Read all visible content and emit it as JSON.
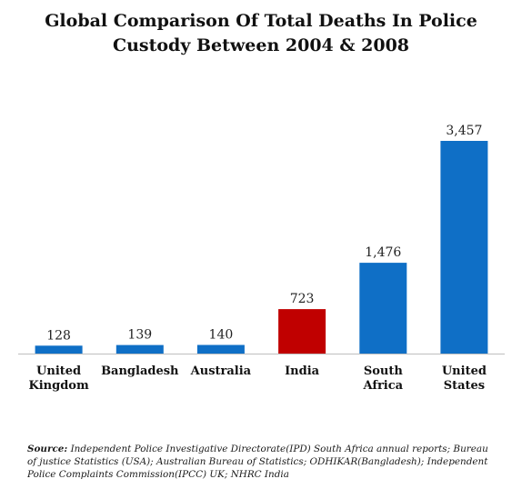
{
  "title": {
    "line1": "Global Comparison Of Total Deaths In Police",
    "line2": "Custody Between 2004 & 2008"
  },
  "source": {
    "label": "Source:",
    "text": "Independent Police Investigative Directorate(IPD) South Africa annual reports; Bureau of justice Statistics (USA); Australian Bureau of Statistics; ODHIKAR(Bangladesh); Independent Police Complaints Commission(IPCC) UK; NHRC India"
  },
  "chart_data": {
    "type": "bar",
    "title": "Global Comparison Of Total Deaths In Police Custody Between 2004 & 2008",
    "categories": [
      [
        "United",
        "Kingdom"
      ],
      [
        "Bangladesh"
      ],
      [
        "Australia"
      ],
      [
        "India"
      ],
      [
        "South",
        "Africa"
      ],
      [
        "United",
        "States"
      ]
    ],
    "values": [
      128,
      139,
      140,
      723,
      1476,
      3457
    ],
    "value_labels": [
      "128",
      "139",
      "140",
      "723",
      "1,476",
      "3,457"
    ],
    "colors": [
      "#0f6fc6",
      "#0f6fc6",
      "#0f6fc6",
      "#c00000",
      "#0f6fc6",
      "#0f6fc6"
    ],
    "ylim": [
      0,
      3900
    ],
    "grid": false,
    "legend": false
  }
}
